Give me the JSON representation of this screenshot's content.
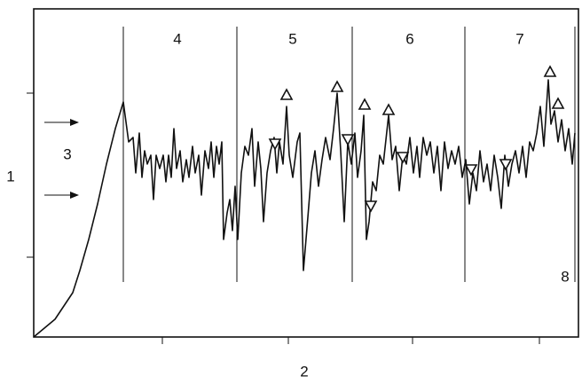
{
  "labels": {
    "y_axis": "1",
    "x_axis": "2",
    "band": "3",
    "zones": [
      "4",
      "5",
      "6",
      "7",
      "8"
    ]
  }
}
